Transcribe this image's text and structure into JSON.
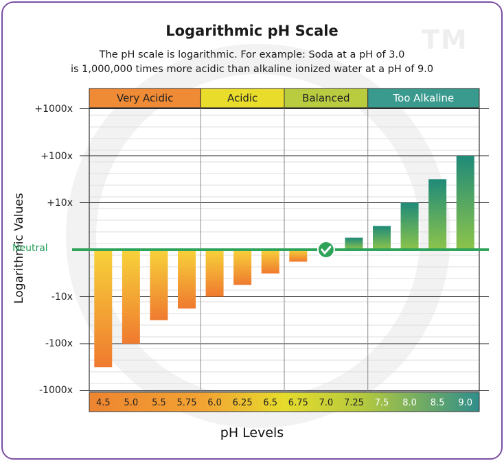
{
  "title": "Logarithmic pH Scale",
  "subtitle_line1": "The pH scale is logarithmic. For example: Soda at a pH of 3.0",
  "subtitle_line2": "is 1,000,000 times more acidic than alkaline ionized water at a pH of 9.0",
  "watermark": "TM",
  "colors": {
    "very_acidic": "#ef8a35",
    "acidic": "#e9dc2b",
    "balanced": "#b9cc3f",
    "too_alkaline": "#3a9a8e",
    "neutral_line": "#2fa35a",
    "frame": "#7a4fa3"
  },
  "chart_data": {
    "type": "bar",
    "title": "Logarithmic pH Scale",
    "xlabel": "pH Levels",
    "ylabel": "Logarithmic Values",
    "y_scale": "log-symmetric (signed powers of ten)",
    "ylim": [
      -1000,
      1000
    ],
    "y_ticks": [
      "+1000x",
      "+100x",
      "+10x",
      "-10x",
      "-100x",
      "-1000x"
    ],
    "neutral_label": "Neutral",
    "zones": [
      {
        "label": "Very Acidic",
        "categories": [
          "4.5",
          "5.0",
          "5.5",
          "5.75"
        ]
      },
      {
        "label": "Acidic",
        "categories": [
          "6.0",
          "6.25",
          "6.5"
        ]
      },
      {
        "label": "Balanced",
        "categories": [
          "6.75",
          "7.0",
          "7.25"
        ]
      },
      {
        "label": "Too Alkaline",
        "categories": [
          "7.5",
          "8.0",
          "8.5",
          "9.0"
        ]
      }
    ],
    "categories": [
      "4.5",
      "5.0",
      "5.5",
      "5.75",
      "6.0",
      "6.25",
      "6.5",
      "6.75",
      "7.0",
      "7.25",
      "7.5",
      "8.0",
      "8.5",
      "9.0"
    ],
    "values": [
      -316,
      -100,
      -31.6,
      -17.8,
      -10,
      -5.6,
      -3.2,
      -1.8,
      1,
      1.8,
      3.2,
      10,
      31.6,
      100
    ],
    "grid": true,
    "neutral_marker": "check-icon at 7.0"
  }
}
